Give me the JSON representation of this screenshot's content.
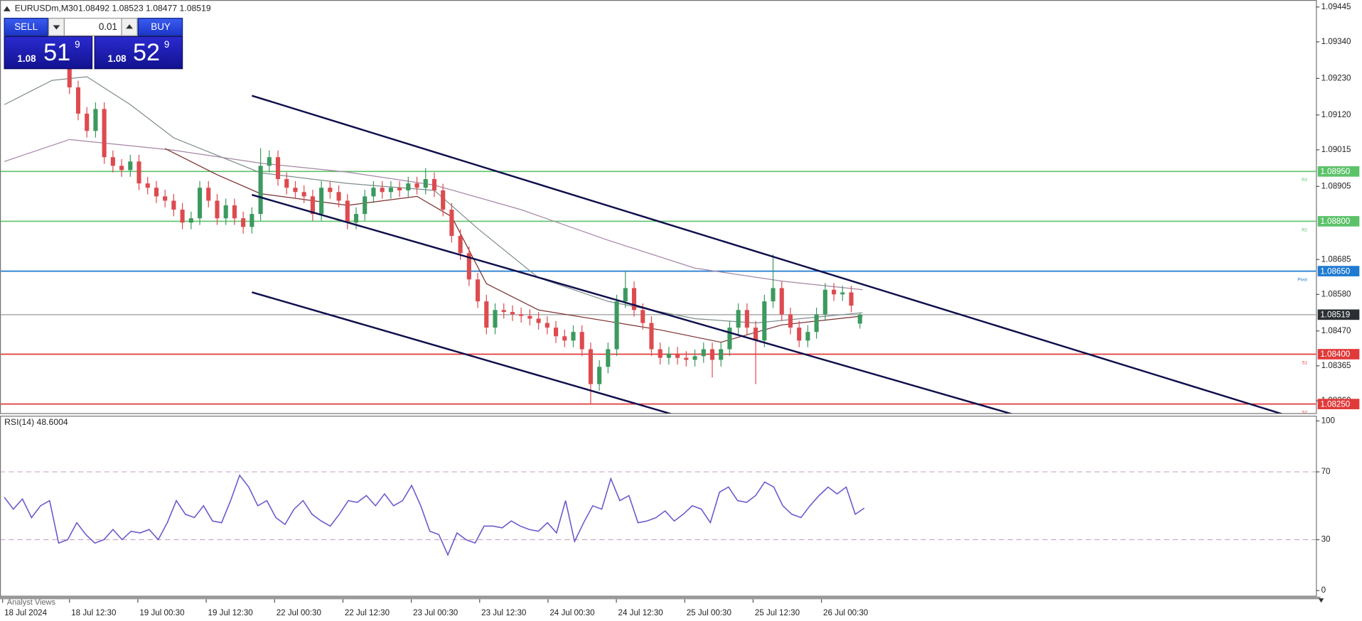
{
  "header": {
    "symbol": "EURUSDm,M30",
    "quote": "1.08492 1.08523 1.08477 1.08519"
  },
  "trade_panel": {
    "sell": "SELL",
    "buy": "BUY",
    "lot": 0.01,
    "sell_price": {
      "big": 1.08,
      "pips": 51,
      "point": 9
    },
    "buy_price": {
      "big": 1.08,
      "pips": 52,
      "point": 9
    }
  },
  "price_chart": {
    "ylim": [
      1.0822,
      1.09466
    ],
    "xlim": [
      -8,
      143.5
    ],
    "yticks": [
      1.09445,
      {
        "value": 1.0934,
        "label": "1.09340"
      },
      {
        "value": 1.0923,
        "label": "1.09230"
      },
      {
        "value": 1.0912,
        "label": "1.09120"
      },
      1.09015,
      1.08905,
      1.08685,
      {
        "value": 1.0858,
        "label": "1.08580"
      },
      {
        "value": 1.0847,
        "label": "1.08470"
      },
      1.08365,
      {
        "value": 1.0826,
        "label": "1.08260"
      }
    ],
    "up_color": "#3c9a5f",
    "down_color": "#dd4b4f",
    "levels": [
      {
        "value": 1.0895,
        "label": "1.08950",
        "tag": "R3",
        "color": "#5cc26a"
      },
      {
        "value": 1.088,
        "label": "1.08800",
        "tag": "R2",
        "color": "#5cc26a"
      },
      {
        "value": 1.0865,
        "label": "1.08650",
        "tag": "Pivot",
        "color": "#1f7ad1"
      },
      {
        "value": 1.08519,
        "color": "#2b2f33"
      },
      {
        "value": 1.084,
        "label": "1.08400",
        "tag": "S1",
        "color": "#e03a3a"
      },
      {
        "value": 1.0825,
        "label": "1.08250",
        "tag": "S2",
        "color": "#e03a3a"
      }
    ],
    "moving_averages": [
      {
        "color": "#a486a4",
        "x": [
          -7.5,
          0,
          12,
          22,
          32,
          42,
          52,
          62,
          72,
          82,
          91.3
        ],
        "values": [
          1.0898,
          1.09046,
          1.09014,
          1.08975,
          1.08948,
          1.08909,
          1.08835,
          1.08743,
          1.08659,
          1.0862,
          1.08594
        ]
      },
      {
        "color": "#7f8c8d",
        "x": [
          -7.5,
          -2,
          2,
          7,
          12,
          22,
          32,
          42,
          47,
          54,
          62,
          72,
          79,
          91.3
        ],
        "values": [
          1.09151,
          1.09224,
          1.09235,
          1.09151,
          1.09051,
          1.08946,
          1.08914,
          1.08893,
          1.08778,
          1.0863,
          1.08559,
          1.08507,
          1.08494,
          1.08525
        ]
      },
      {
        "color": "#7a2e2e",
        "x": [
          11,
          17,
          22,
          32,
          40,
          44,
          48,
          54,
          62,
          68,
          75,
          82,
          91.3
        ],
        "values": [
          1.09019,
          1.0894,
          1.08883,
          1.08848,
          1.08875,
          1.08814,
          1.08612,
          1.08533,
          1.08499,
          1.08473,
          1.08436,
          1.08488,
          1.08515
        ]
      }
    ],
    "candles": [
      [
        1.0926,
        1.0929,
        1.09183,
        1.09203
      ],
      [
        1.09203,
        1.09223,
        1.09104,
        1.09124
      ],
      [
        1.09124,
        1.09144,
        1.09052,
        1.09072
      ],
      [
        1.09072,
        1.09158,
        1.09052,
        1.09138
      ],
      [
        1.09138,
        1.09158,
        1.08973,
        1.08993
      ],
      [
        1.08993,
        1.09013,
        1.08947,
        1.08967
      ],
      [
        1.08967,
        1.08987,
        1.08934,
        1.08954
      ],
      [
        1.08954,
        1.09,
        1.08934,
        1.0898
      ],
      [
        1.0898,
        1.09,
        1.08894,
        1.08914
      ],
      [
        1.08914,
        1.08934,
        1.08881,
        1.08901
      ],
      [
        1.08901,
        1.08921,
        1.08855,
        1.08875
      ],
      [
        1.08875,
        1.08895,
        1.08842,
        1.08862
      ],
      [
        1.08862,
        1.08882,
        1.08815,
        1.08835
      ],
      [
        1.08835,
        1.08855,
        1.08776,
        1.08796
      ],
      [
        1.08796,
        1.08829,
        1.08776,
        1.08809
      ],
      [
        1.08809,
        1.08921,
        1.08789,
        1.08901
      ],
      [
        1.08901,
        1.08921,
        1.08842,
        1.08862
      ],
      [
        1.08862,
        1.08882,
        1.08789,
        1.08809
      ],
      [
        1.08809,
        1.08868,
        1.08789,
        1.08848
      ],
      [
        1.08848,
        1.08868,
        1.08789,
        1.08809
      ],
      [
        1.08809,
        1.08829,
        1.08763,
        1.08783
      ],
      [
        1.08783,
        1.08842,
        1.08763,
        1.08822
      ],
      [
        1.08822,
        1.0902,
        1.08802,
        1.08967
      ],
      [
        1.08967,
        1.09013,
        1.08947,
        1.08993
      ],
      [
        1.08993,
        1.09013,
        1.08907,
        1.08927
      ],
      [
        1.08927,
        1.08947,
        1.08881,
        1.08901
      ],
      [
        1.08901,
        1.08921,
        1.08868,
        1.08888
      ],
      [
        1.08888,
        1.08908,
        1.08855,
        1.08875
      ],
      [
        1.08875,
        1.08895,
        1.08802,
        1.08822
      ],
      [
        1.08822,
        1.08921,
        1.08802,
        1.08901
      ],
      [
        1.08901,
        1.08921,
        1.08868,
        1.08888
      ],
      [
        1.08888,
        1.08908,
        1.08842,
        1.08862
      ],
      [
        1.08862,
        1.08882,
        1.08776,
        1.08796
      ],
      [
        1.08796,
        1.08842,
        1.08776,
        1.08822
      ],
      [
        1.08822,
        1.08895,
        1.08802,
        1.08875
      ],
      [
        1.08875,
        1.08921,
        1.08855,
        1.08901
      ],
      [
        1.08901,
        1.08921,
        1.08868,
        1.08888
      ],
      [
        1.08888,
        1.08921,
        1.08868,
        1.08901
      ],
      [
        1.08901,
        1.08921,
        1.08873,
        1.08893
      ],
      [
        1.08893,
        1.08934,
        1.08873,
        1.08914
      ],
      [
        1.08914,
        1.08934,
        1.08881,
        1.08901
      ],
      [
        1.08901,
        1.0896,
        1.08881,
        1.08927
      ],
      [
        1.08927,
        1.08947,
        1.08873,
        1.08893
      ],
      [
        1.08893,
        1.08913,
        1.08815,
        1.08835
      ],
      [
        1.08835,
        1.08855,
        1.08736,
        1.08756
      ],
      [
        1.08756,
        1.08776,
        1.08684,
        1.08704
      ],
      [
        1.08704,
        1.08724,
        1.08605,
        1.08625
      ],
      [
        1.08625,
        1.08645,
        1.08539,
        1.08559
      ],
      [
        1.08559,
        1.08579,
        1.0846,
        1.0848
      ],
      [
        1.0848,
        1.08553,
        1.0846,
        1.08533
      ],
      [
        1.08533,
        1.08553,
        1.08507,
        1.08527
      ],
      [
        1.08527,
        1.08547,
        1.085,
        1.0852
      ],
      [
        1.0852,
        1.0854,
        1.08495,
        1.08515
      ],
      [
        1.08515,
        1.08535,
        1.08487,
        1.08507
      ],
      [
        1.08507,
        1.08527,
        1.08474,
        1.08494
      ],
      [
        1.08494,
        1.08514,
        1.0846,
        1.0848
      ],
      [
        1.0848,
        1.085,
        1.08434,
        1.08454
      ],
      [
        1.08454,
        1.08474,
        1.08421,
        1.08441
      ],
      [
        1.08441,
        1.08487,
        1.08421,
        1.08467
      ],
      [
        1.08467,
        1.08487,
        1.08395,
        1.08415
      ],
      [
        1.08415,
        1.08435,
        1.0825,
        1.0831
      ],
      [
        1.0831,
        1.08382,
        1.0829,
        1.08362
      ],
      [
        1.08362,
        1.08435,
        1.08342,
        1.08415
      ],
      [
        1.08415,
        1.08579,
        1.08395,
        1.08559
      ],
      [
        1.08559,
        1.0865,
        1.08539,
        1.08599
      ],
      [
        1.08599,
        1.08619,
        1.08513,
        1.08533
      ],
      [
        1.08533,
        1.08553,
        1.08474,
        1.08494
      ],
      [
        1.08494,
        1.08514,
        1.08395,
        1.08415
      ],
      [
        1.08415,
        1.08435,
        1.08369,
        1.08389
      ],
      [
        1.08389,
        1.08422,
        1.08369,
        1.08402
      ],
      [
        1.08402,
        1.08422,
        1.08369,
        1.08389
      ],
      [
        1.08389,
        1.08409,
        1.08363,
        1.08383
      ],
      [
        1.08383,
        1.08414,
        1.08363,
        1.08394
      ],
      [
        1.08394,
        1.08435,
        1.08374,
        1.08415
      ],
      [
        1.08415,
        1.08435,
        1.0833,
        1.08383
      ],
      [
        1.08383,
        1.08435,
        1.08363,
        1.08415
      ],
      [
        1.08415,
        1.085,
        1.08395,
        1.0848
      ],
      [
        1.0848,
        1.08553,
        1.0846,
        1.08533
      ],
      [
        1.08533,
        1.08553,
        1.0846,
        1.0848
      ],
      [
        1.0848,
        1.085,
        1.0831,
        1.08441
      ],
      [
        1.08441,
        1.08579,
        1.08421,
        1.08559
      ],
      [
        1.08559,
        1.087,
        1.08539,
        1.08599
      ],
      [
        1.08599,
        1.08619,
        1.085,
        1.0852
      ],
      [
        1.0852,
        1.0854,
        1.0846,
        1.0848
      ],
      [
        1.0848,
        1.085,
        1.08421,
        1.08441
      ],
      [
        1.08441,
        1.08487,
        1.08421,
        1.08467
      ],
      [
        1.08467,
        1.0854,
        1.08447,
        1.0852
      ],
      [
        1.0852,
        1.08614,
        1.085,
        1.08594
      ],
      [
        1.08594,
        1.08614,
        1.0856,
        1.0858
      ],
      [
        1.0858,
        1.08606,
        1.0856,
        1.08586
      ],
      [
        1.08586,
        1.08606,
        1.08526,
        1.08546
      ],
      [
        1.08492,
        1.08523,
        1.08477,
        1.08519
      ]
    ]
  },
  "rsi_panel": {
    "title": "RSI(14) 48.6004",
    "color": "#6a5acd",
    "ylim": [
      0,
      100
    ],
    "yticks": [
      100,
      70,
      30,
      0
    ],
    "levels": [
      70,
      30
    ],
    "values": [
      55,
      48,
      54,
      43,
      50,
      53,
      28,
      30,
      40,
      33,
      28,
      30,
      36,
      30,
      35,
      34,
      36,
      30,
      40,
      53,
      45,
      43,
      50,
      41,
      40,
      53,
      68,
      61,
      50,
      53,
      43,
      39,
      48,
      53,
      45,
      41,
      38,
      45,
      53,
      52,
      56,
      50,
      57,
      50,
      53,
      62,
      50,
      35,
      33,
      21,
      34,
      30,
      28,
      38,
      38,
      37,
      41,
      38,
      36,
      35,
      40,
      34,
      53,
      29,
      40,
      50,
      48,
      66,
      53,
      56,
      40,
      41,
      43,
      47,
      41,
      45,
      50,
      48,
      40,
      58,
      61,
      53,
      52,
      56,
      64,
      61,
      50,
      45,
      43,
      50,
      56,
      61,
      57,
      61,
      45,
      48.6
    ]
  },
  "time_axis": {
    "labels": [
      "18 Jul 2024",
      "18 Jul 12:30",
      "19 Jul 00:30",
      "19 Jul 12:30",
      "22 Jul 00:30",
      "22 Jul 12:30",
      "23 Jul 00:30",
      "23 Jul 12:30",
      "24 Jul 00:30",
      "24 Jul 12:30",
      "25 Jul 00:30",
      "25 Jul 12:30",
      "26 Jul 00:30"
    ]
  },
  "footer": {
    "tab": "Analyst Views"
  }
}
